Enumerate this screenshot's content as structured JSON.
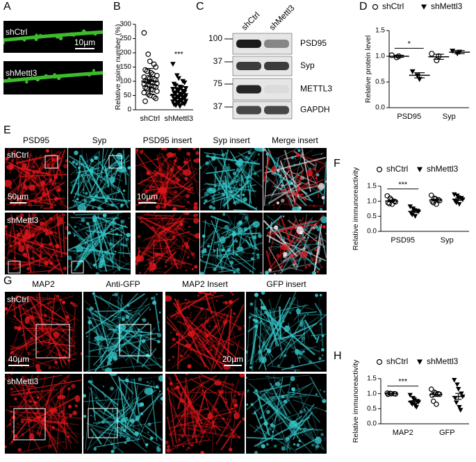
{
  "panels": {
    "A": {
      "label": "A",
      "rows": [
        "shCtrl",
        "shMettl3"
      ],
      "scale": "10µm"
    },
    "B": {
      "label": "B",
      "y_label": "Relative spine number (%)",
      "ylim": [
        0,
        300
      ],
      "yticks": [
        0,
        50,
        100,
        150,
        200,
        250,
        300
      ],
      "groups": [
        {
          "name": "shCtrl",
          "series": [
            {
              "marker": "circle",
              "values": [
                270,
                195,
                170,
                160,
                150,
                140,
                135,
                130,
                125,
                120,
                115,
                112,
                110,
                108,
                105,
                102,
                100,
                98,
                95,
                92,
                90,
                88,
                85,
                82,
                80,
                78,
                75,
                72,
                70,
                65,
                60,
                55,
                50,
                45,
                40,
                30
              ],
              "mean": 100,
              "error": 45
            }
          ]
        },
        {
          "name": "shMettl3",
          "sig": "***",
          "series": [
            {
              "marker": "triangle",
              "values": [
                160,
                120,
                110,
                100,
                95,
                90,
                85,
                80,
                78,
                75,
                72,
                70,
                68,
                65,
                62,
                60,
                58,
                55,
                52,
                50,
                48,
                46,
                44,
                42,
                40,
                38,
                36,
                34,
                32,
                30,
                28,
                26,
                24,
                22,
                20,
                18,
                15,
                12
              ],
              "mean": 50,
              "error": 28
            }
          ]
        }
      ]
    },
    "C": {
      "label": "C",
      "lanes": [
        "shCtrl",
        "shMettl3"
      ],
      "markers": [
        "100",
        "37",
        "75",
        "37"
      ],
      "bands": [
        "PSD95",
        "Syp",
        "METTL3",
        "GAPDH"
      ]
    },
    "D": {
      "label": "D",
      "legend": [
        {
          "name": "shCtrl",
          "marker": "circle"
        },
        {
          "name": "shMettl3",
          "marker": "triangle"
        }
      ],
      "y_label": "Relative protein level",
      "ylim": [
        0,
        1.5
      ],
      "yticks": [
        {
          "value": 0,
          "label": "0.0"
        },
        0.5,
        {
          "value": 1,
          "label": "1.0"
        },
        1.5
      ],
      "groups": [
        {
          "name": "PSD95",
          "sig": "*",
          "series": [
            {
              "marker": "circle",
              "values": [
                1.02,
                0.98,
                1.0
              ],
              "mean": 1.0,
              "error": 0.02
            },
            {
              "marker": "triangle",
              "values": [
                0.7,
                0.62,
                0.55
              ],
              "mean": 0.63,
              "error": 0.05
            }
          ]
        },
        {
          "name": "Syp",
          "series": [
            {
              "marker": "circle",
              "values": [
                1.05,
                0.92,
                1.0
              ],
              "mean": 0.99,
              "error": 0.05
            },
            {
              "marker": "triangle",
              "values": [
                1.1,
                1.05,
                1.08
              ],
              "mean": 1.08,
              "error": 0.03
            }
          ]
        }
      ]
    },
    "E": {
      "label": "E",
      "columns": [
        "PSD95",
        "Syp",
        "PSD95 insert",
        "Syp insert",
        "Merge insert"
      ],
      "rows": [
        "shCtrl",
        "shMettl3"
      ],
      "scales": [
        "50µm",
        "10µm"
      ]
    },
    "F": {
      "label": "F",
      "legend": [
        {
          "name": "shCtrl",
          "marker": "circle"
        },
        {
          "name": "shMettl3",
          "marker": "triangle"
        }
      ],
      "y_label": "Relative immunoreactivity",
      "ylim": [
        0,
        1.5
      ],
      "yticks": [
        {
          "value": 0,
          "label": "0.0"
        },
        0.5,
        {
          "value": 1,
          "label": "1.0"
        },
        1.5
      ],
      "groups": [
        {
          "name": "PSD95",
          "sig": "***",
          "series": [
            {
              "marker": "circle",
              "values": [
                1.18,
                1.1,
                1.05,
                1.0,
                0.98,
                0.95,
                0.92,
                0.9
              ],
              "mean": 1.01,
              "error": 0.03
            },
            {
              "marker": "triangle",
              "values": [
                0.82,
                0.75,
                0.7,
                0.68,
                0.65,
                0.6,
                0.55,
                0.5
              ],
              "mean": 0.66,
              "error": 0.04
            }
          ]
        },
        {
          "name": "Syp",
          "series": [
            {
              "marker": "circle",
              "values": [
                1.2,
                1.1,
                1.08,
                1.05,
                1.02,
                1.0,
                0.95,
                0.9
              ],
              "mean": 1.04,
              "error": 0.03
            },
            {
              "marker": "triangle",
              "values": [
                1.22,
                1.18,
                1.12,
                1.1,
                1.05,
                1.0,
                0.95,
                0.9
              ],
              "mean": 1.07,
              "error": 0.04
            }
          ]
        }
      ]
    },
    "G": {
      "label": "G",
      "columns": [
        "MAP2",
        "Anti-GFP",
        "MAP2 Insert",
        "GFP insert"
      ],
      "rows": [
        "shCtrl",
        "shMettl3"
      ],
      "scales": [
        "40µm",
        "20µm"
      ]
    },
    "H": {
      "label": "H",
      "legend": [
        {
          "name": "shCtrl",
          "marker": "circle"
        },
        {
          "name": "shMettl3",
          "marker": "triangle"
        }
      ],
      "y_label": "Relative immunoreactivity",
      "ylim": [
        0,
        1.5
      ],
      "yticks": [
        {
          "value": 0,
          "label": "0.0"
        },
        0.5,
        {
          "value": 1,
          "label": "1.0"
        },
        1.5
      ],
      "groups": [
        {
          "name": "MAP2",
          "sig": "***",
          "series": [
            {
              "marker": "circle",
              "values": [
                1.02,
                1.01,
                1.0,
                1.0,
                0.99,
                0.98
              ],
              "mean": 1.0,
              "error": 0.01
            },
            {
              "marker": "triangle",
              "values": [
                0.95,
                0.85,
                0.8,
                0.75,
                0.72,
                0.7,
                0.65,
                0.6,
                0.55
              ],
              "mean": 0.73,
              "error": 0.04
            }
          ]
        },
        {
          "name": "GFP",
          "series": [
            {
              "marker": "circle",
              "values": [
                1.15,
                1.05,
                1.02,
                1.0,
                0.98,
                0.95,
                0.75,
                0.65
              ],
              "mean": 0.97,
              "error": 0.06
            },
            {
              "marker": "triangle",
              "values": [
                1.45,
                1.3,
                1.15,
                1.0,
                0.9,
                0.85,
                0.7,
                0.55,
                0.45
              ],
              "mean": 0.91,
              "error": 0.1
            }
          ]
        }
      ]
    }
  }
}
